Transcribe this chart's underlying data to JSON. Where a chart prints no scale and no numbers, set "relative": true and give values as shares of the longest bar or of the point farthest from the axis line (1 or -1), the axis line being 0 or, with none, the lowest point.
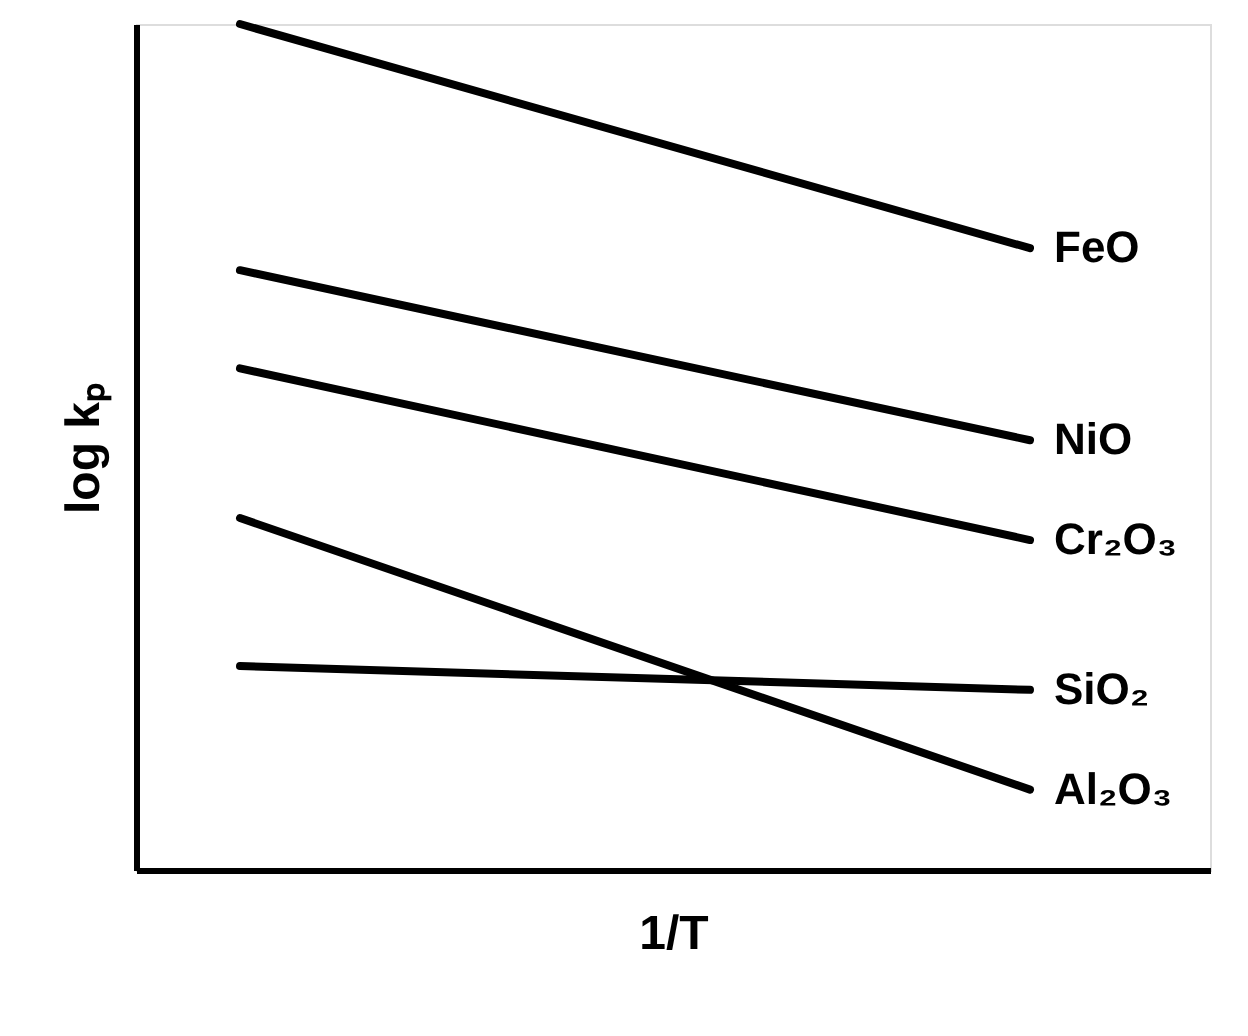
{
  "chart_data": {
    "type": "line",
    "relative": true,
    "xlabel": "1/T",
    "ylabel": "log kₚ",
    "categories": [
      null,
      null
    ],
    "legend": false,
    "marker": "none",
    "line_style": "solid",
    "series": [
      {
        "name": "FeO",
        "color": "#000000",
        "values": [
          1.0,
          0.735
        ]
      },
      {
        "name": "NiO",
        "color": "#000000",
        "values": [
          0.709,
          0.508
        ]
      },
      {
        "name": "Cr₂O₃",
        "color": "#000000",
        "values": [
          0.593,
          0.39
        ]
      },
      {
        "name": "SiO₂",
        "color": "#000000",
        "values": [
          0.241,
          0.213
        ]
      },
      {
        "name": "Al₂O₃",
        "color": "#000000",
        "values": [
          0.416,
          0.095
        ]
      }
    ]
  }
}
